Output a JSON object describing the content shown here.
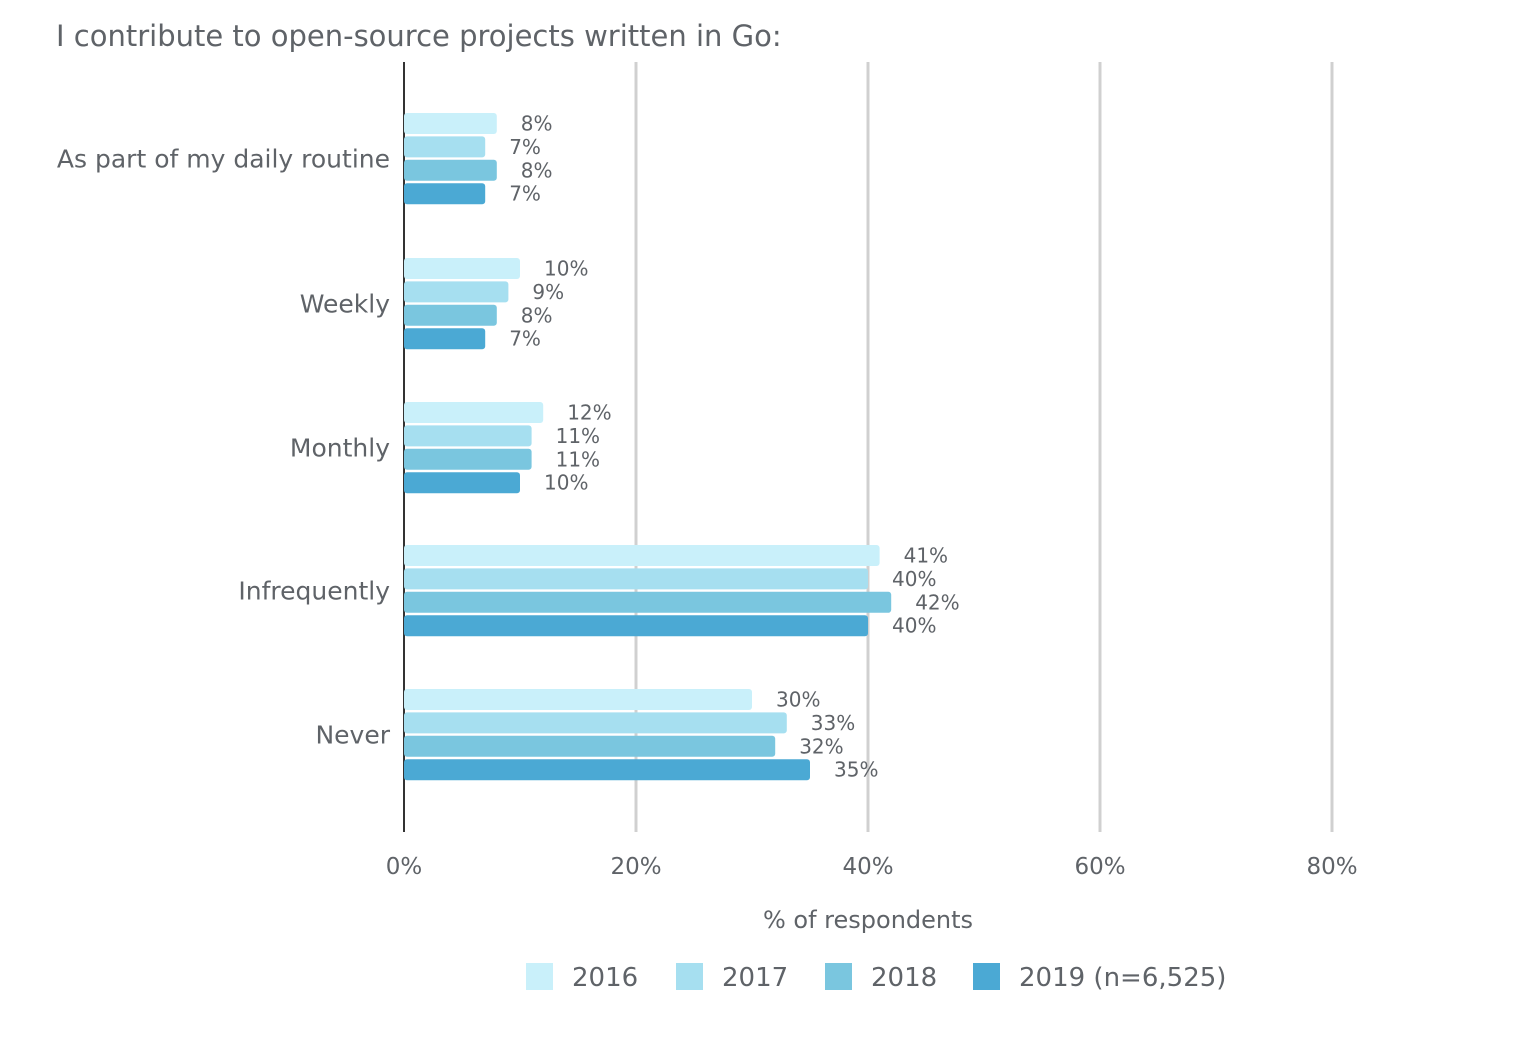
{
  "chart_data": {
    "type": "bar",
    "orientation": "horizontal",
    "title": "I contribute to open-source projects written in Go:",
    "categories": [
      "As part of my daily routine",
      "Weekly",
      "Monthly",
      "Infrequently",
      "Never"
    ],
    "series": [
      {
        "name": "2016",
        "color": "#c9f0fa",
        "values": [
          8,
          10,
          12,
          41,
          30
        ]
      },
      {
        "name": "2017",
        "color": "#a6dff0",
        "values": [
          7,
          9,
          11,
          40,
          33
        ]
      },
      {
        "name": "2018",
        "color": "#7ac6df",
        "values": [
          8,
          8,
          11,
          42,
          32
        ]
      },
      {
        "name": "2019 (n=6,525)",
        "color": "#4ba9d4",
        "values": [
          7,
          7,
          10,
          40,
          35
        ]
      }
    ],
    "data_labels": [
      [
        "8%",
        "10%",
        "12%",
        "41%",
        "30%"
      ],
      [
        "7%",
        "9%",
        "11%",
        "40%",
        "33%"
      ],
      [
        "8%",
        "8%",
        "11%",
        "42%",
        "32%"
      ],
      [
        "7%",
        "7%",
        "10%",
        "40%",
        "35%"
      ]
    ],
    "xlabel": "% of respondents",
    "ylabel": "",
    "xlim": [
      0,
      80
    ],
    "xticks": [
      0,
      20,
      40,
      60,
      80
    ],
    "xtick_labels": [
      "0%",
      "20%",
      "40%",
      "60%",
      "80%"
    ],
    "grid": true,
    "legend_position": "bottom"
  }
}
